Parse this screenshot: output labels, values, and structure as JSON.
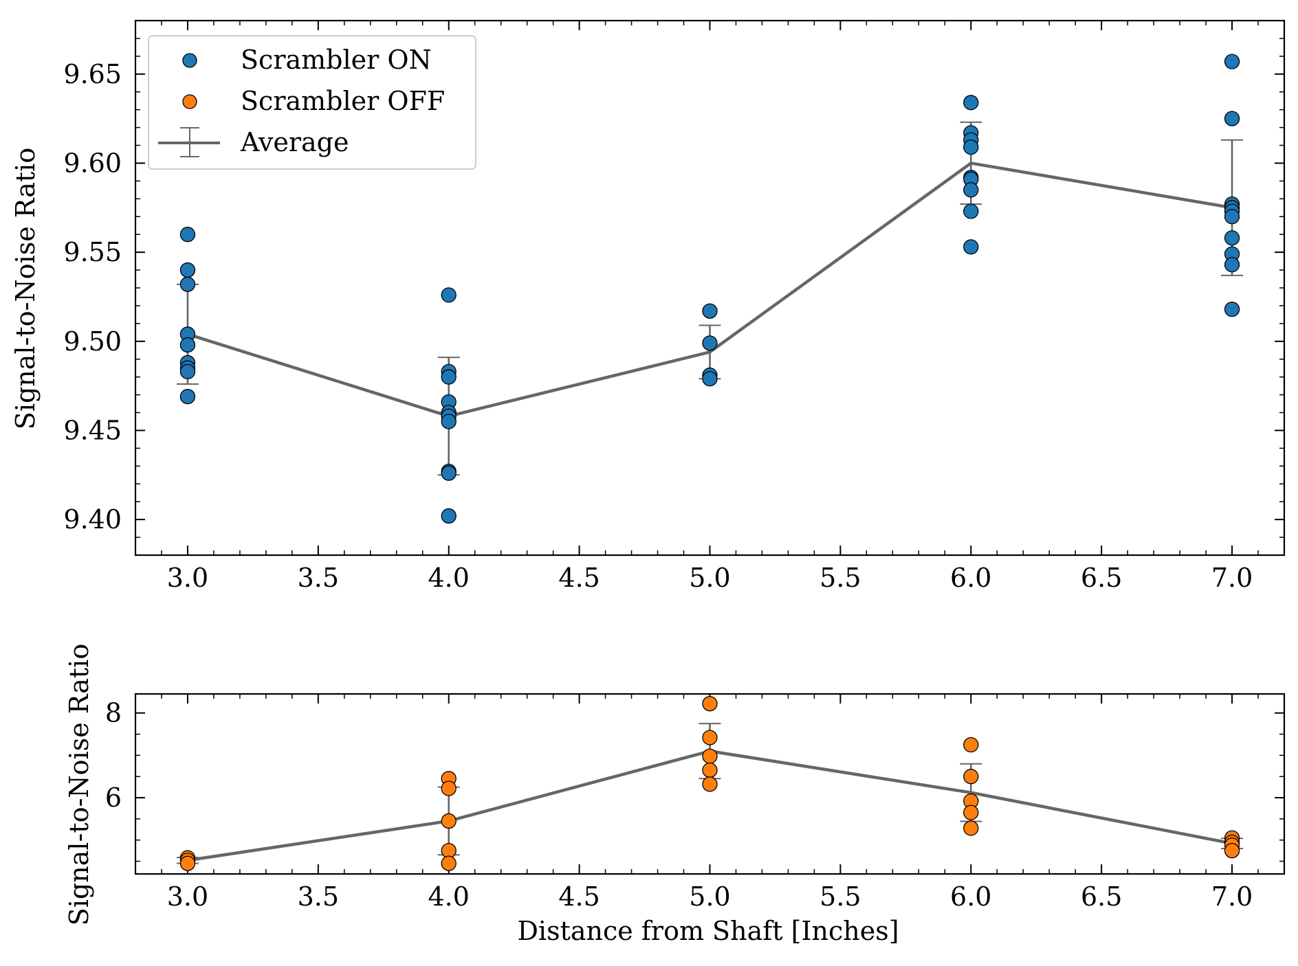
{
  "chart_data": [
    {
      "type": "scatter",
      "ylabel": "Signal-to-Noise Ratio",
      "xlabel": "",
      "xlim": [
        2.8,
        7.2
      ],
      "ylim": [
        9.38,
        9.68
      ],
      "xticks": [
        "3.0",
        "3.5",
        "4.0",
        "4.5",
        "5.0",
        "5.5",
        "6.0",
        "6.5",
        "7.0"
      ],
      "yticks": [
        "9.40",
        "9.45",
        "9.50",
        "9.55",
        "9.60",
        "9.65"
      ],
      "legend": {
        "position": "top-left",
        "entries": [
          "Scrambler ON",
          "Scrambler OFF",
          "Average"
        ]
      },
      "series": [
        {
          "name": "Scrambler ON",
          "color": "#1f77b4",
          "points": [
            [
              3,
              9.56
            ],
            [
              3,
              9.54
            ],
            [
              3,
              9.532
            ],
            [
              3,
              9.504
            ],
            [
              3,
              9.498
            ],
            [
              3,
              9.488
            ],
            [
              3,
              9.485
            ],
            [
              3,
              9.483
            ],
            [
              3,
              9.469
            ],
            [
              4,
              9.526
            ],
            [
              4,
              9.483
            ],
            [
              4,
              9.48
            ],
            [
              4,
              9.466
            ],
            [
              4,
              9.46
            ],
            [
              4,
              9.458
            ],
            [
              4,
              9.455
            ],
            [
              4,
              9.427
            ],
            [
              4,
              9.426
            ],
            [
              4,
              9.402
            ],
            [
              5,
              9.517
            ],
            [
              5,
              9.499
            ],
            [
              5,
              9.481
            ],
            [
              5,
              9.479
            ],
            [
              6,
              9.634
            ],
            [
              6,
              9.617
            ],
            [
              6,
              9.613
            ],
            [
              6,
              9.609
            ],
            [
              6,
              9.592
            ],
            [
              6,
              9.591
            ],
            [
              6,
              9.585
            ],
            [
              6,
              9.573
            ],
            [
              6,
              9.553
            ],
            [
              7,
              9.657
            ],
            [
              7,
              9.625
            ],
            [
              7,
              9.577
            ],
            [
              7,
              9.575
            ],
            [
              7,
              9.573
            ],
            [
              7,
              9.57
            ],
            [
              7,
              9.558
            ],
            [
              7,
              9.549
            ],
            [
              7,
              9.543
            ],
            [
              7,
              9.518
            ]
          ]
        },
        {
          "name": "Average",
          "color": "#666666",
          "x": [
            3,
            4,
            5,
            6,
            7
          ],
          "y": [
            9.504,
            9.458,
            9.494,
            9.6,
            9.575
          ],
          "err": [
            0.028,
            0.033,
            0.015,
            0.023,
            0.038
          ]
        }
      ]
    },
    {
      "type": "scatter",
      "ylabel": "Signal-to-Noise Ratio",
      "xlabel": "Distance from Shaft [Inches]",
      "xlim": [
        2.8,
        7.2
      ],
      "ylim": [
        4.2,
        8.45
      ],
      "xticks": [
        "3.0",
        "3.5",
        "4.0",
        "4.5",
        "5.0",
        "5.5",
        "6.0",
        "6.5",
        "7.0"
      ],
      "yticks": [
        "6",
        "8"
      ],
      "series": [
        {
          "name": "Scrambler OFF",
          "color": "#ff7f0e",
          "points": [
            [
              3,
              4.58
            ],
            [
              3,
              4.52
            ],
            [
              3,
              4.45
            ],
            [
              4,
              6.45
            ],
            [
              4,
              6.22
            ],
            [
              4,
              5.45
            ],
            [
              4,
              4.75
            ],
            [
              4,
              4.45
            ],
            [
              5,
              8.22
            ],
            [
              5,
              7.42
            ],
            [
              5,
              6.98
            ],
            [
              5,
              6.65
            ],
            [
              5,
              6.32
            ],
            [
              6,
              7.25
            ],
            [
              6,
              6.5
            ],
            [
              6,
              5.92
            ],
            [
              6,
              5.65
            ],
            [
              6,
              5.28
            ],
            [
              7,
              5.05
            ],
            [
              7,
              4.95
            ],
            [
              7,
              4.88
            ],
            [
              7,
              4.75
            ]
          ]
        },
        {
          "name": "Average",
          "color": "#666666",
          "x": [
            3,
            4,
            5,
            6,
            7
          ],
          "y": [
            4.52,
            5.45,
            7.1,
            6.12,
            4.92
          ],
          "err": [
            0.07,
            0.8,
            0.65,
            0.68,
            0.12
          ]
        }
      ]
    }
  ]
}
